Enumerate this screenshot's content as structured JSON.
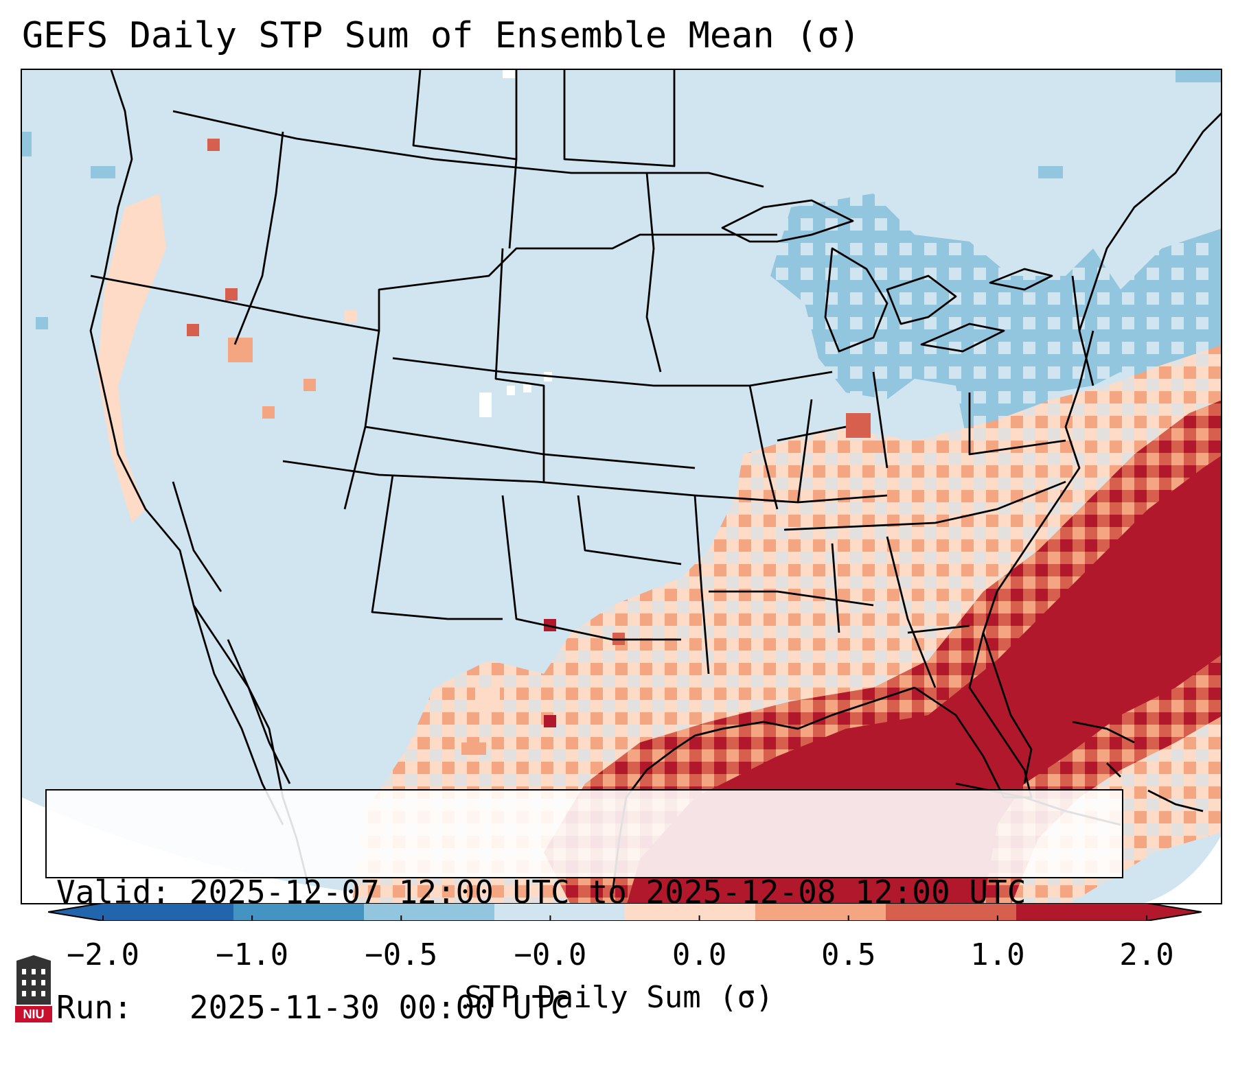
{
  "title": "GEFS Daily STP Sum of Ensemble Mean (σ)",
  "valid_label": "Valid:",
  "valid_range": "2025-12-07 12:00 UTC to 2025-12-08 12:00 UTC",
  "run_label": "Run:",
  "run_time": "2025-11-30 00:00 UTC",
  "colorbar": {
    "label": "STP Daily Sum (σ)",
    "ticks": [
      "−2.0",
      "−1.0",
      "−0.5",
      "−0.0",
      "0.0",
      "0.5",
      "1.0",
      "2.0"
    ],
    "colors": [
      "#2166ac",
      "#4393c3",
      "#92c5de",
      "#d1e5f0",
      "#fddbc7",
      "#f4a582",
      "#d6604d",
      "#b2182b"
    ],
    "under_color": "#2166ac",
    "over_color": "#b2182b"
  },
  "logo_text": "NIU"
}
